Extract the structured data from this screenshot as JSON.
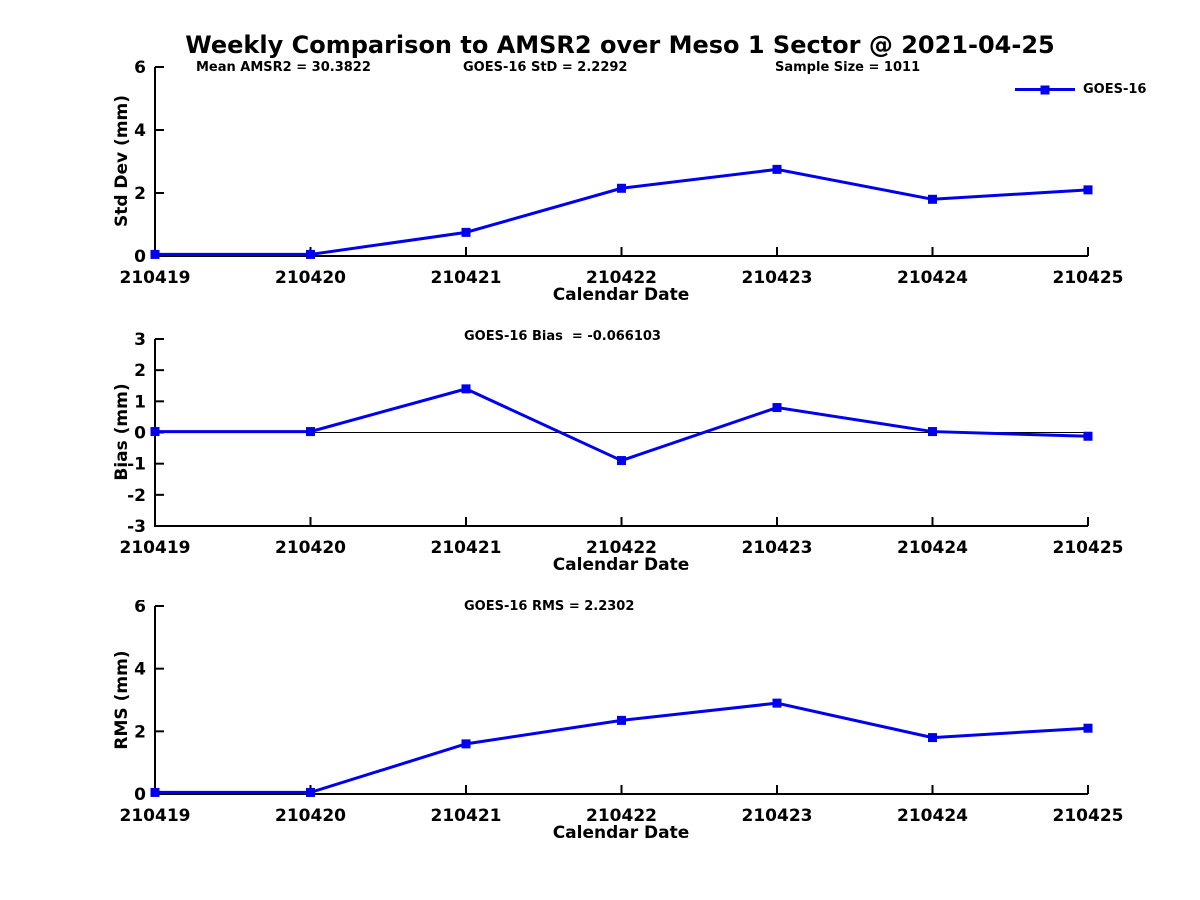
{
  "title": "Weekly Comparison to AMSR2 over Meso 1 Sector @ 2021-04-25",
  "legend": {
    "label": "GOES-16",
    "marker": "square",
    "color": "#0000EE",
    "position": "top-right"
  },
  "colors": {
    "line": "#0000EE",
    "axis": "#000000",
    "text": "#000000",
    "background": "#FFFFFF"
  },
  "chart_data": [
    {
      "type": "line",
      "title": "",
      "annotations": [
        "Mean AMSR2 = 30.3822",
        "GOES-16 StD = 2.2292",
        "Sample Size = 1011"
      ],
      "xlabel": "Calendar Date",
      "ylabel": "Std Dev (mm)",
      "categories": [
        "210419",
        "210420",
        "210421",
        "210422",
        "210423",
        "210424",
        "210425"
      ],
      "series": [
        {
          "name": "GOES-16",
          "values": [
            0.05,
            0.05,
            0.75,
            2.15,
            2.75,
            1.8,
            2.1
          ]
        }
      ],
      "ylim": [
        0,
        6
      ],
      "yticks": [
        0,
        2,
        4,
        6
      ],
      "zero_line": false,
      "grid": false,
      "legend_position": "top-right"
    },
    {
      "type": "line",
      "title": "GOES-16 Bias  = -0.066103",
      "xlabel": "Calendar Date",
      "ylabel": "Bias (mm)",
      "categories": [
        "210419",
        "210420",
        "210421",
        "210422",
        "210423",
        "210424",
        "210425"
      ],
      "series": [
        {
          "name": "GOES-16",
          "values": [
            0.03,
            0.03,
            1.4,
            -0.9,
            0.8,
            0.03,
            -0.12
          ]
        }
      ],
      "ylim": [
        -3,
        3
      ],
      "yticks": [
        3,
        2,
        1,
        0,
        -1,
        -2,
        -3
      ],
      "zero_line": true,
      "grid": false,
      "legend_position": "none"
    },
    {
      "type": "line",
      "title": "GOES-16 RMS = 2.2302",
      "xlabel": "Calendar Date",
      "ylabel": "RMS (mm)",
      "categories": [
        "210419",
        "210420",
        "210421",
        "210422",
        "210423",
        "210424",
        "210425"
      ],
      "series": [
        {
          "name": "GOES-16",
          "values": [
            0.05,
            0.05,
            1.6,
            2.35,
            2.9,
            1.8,
            2.1
          ]
        }
      ],
      "ylim": [
        0,
        6
      ],
      "yticks": [
        0,
        2,
        4,
        6
      ],
      "zero_line": false,
      "grid": false,
      "legend_position": "none"
    }
  ]
}
